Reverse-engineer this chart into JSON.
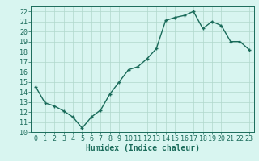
{
  "x": [
    0,
    1,
    2,
    3,
    4,
    5,
    6,
    7,
    8,
    9,
    10,
    11,
    12,
    13,
    14,
    15,
    16,
    17,
    18,
    19,
    20,
    21,
    22,
    23
  ],
  "y": [
    14.5,
    12.9,
    12.6,
    12.1,
    11.5,
    10.4,
    11.5,
    12.2,
    13.8,
    15.0,
    16.2,
    16.5,
    17.3,
    18.3,
    21.1,
    21.4,
    21.6,
    22.0,
    20.3,
    21.0,
    20.6,
    19.0,
    19.0,
    18.2
  ],
  "line_color": "#1a6b5a",
  "marker": "+",
  "marker_size": 3,
  "bg_color": "#d8f5f0",
  "grid_color": "#b0d8cc",
  "xlabel": "Humidex (Indice chaleur)",
  "xlim": [
    -0.5,
    23.5
  ],
  "ylim": [
    10,
    22.5
  ],
  "yticks": [
    10,
    11,
    12,
    13,
    14,
    15,
    16,
    17,
    18,
    19,
    20,
    21,
    22
  ],
  "xticks": [
    0,
    1,
    2,
    3,
    4,
    5,
    6,
    7,
    8,
    9,
    10,
    11,
    12,
    13,
    14,
    15,
    16,
    17,
    18,
    19,
    20,
    21,
    22,
    23
  ],
  "xtick_labels": [
    "0",
    "1",
    "2",
    "3",
    "4",
    "5",
    "6",
    "7",
    "8",
    "9",
    "10",
    "11",
    "12",
    "13",
    "14",
    "15",
    "16",
    "17",
    "18",
    "19",
    "20",
    "21",
    "22",
    "23"
  ],
  "tick_color": "#1a6b5a",
  "xlabel_color": "#1a6b5a",
  "xlabel_fontsize": 7,
  "tick_fontsize": 6,
  "linewidth": 1.0,
  "marker_linewidth": 1.0
}
